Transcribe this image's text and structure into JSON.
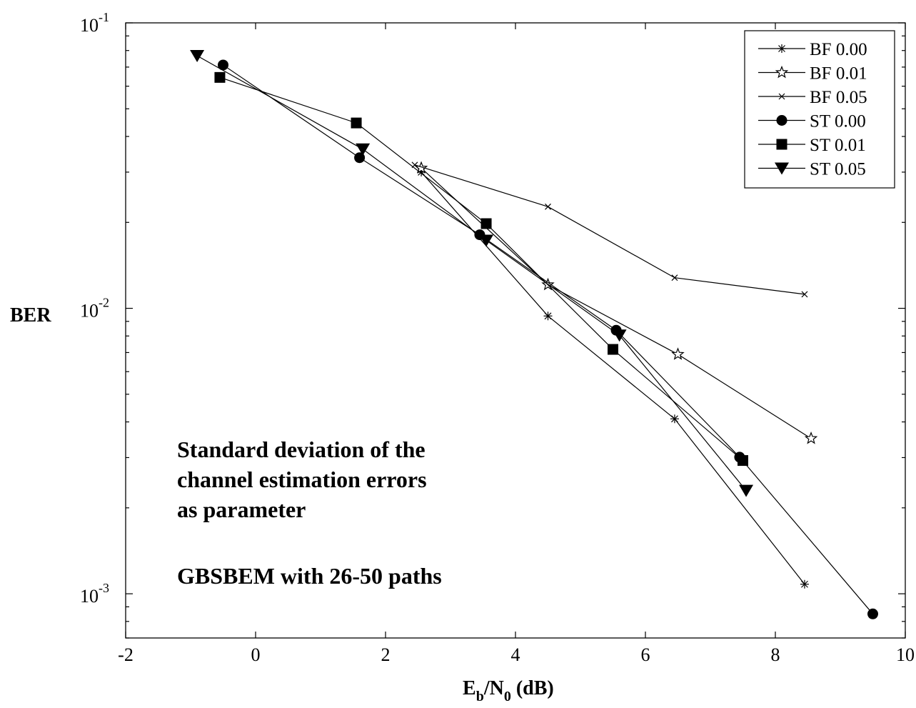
{
  "chart_data": {
    "type": "line",
    "xlabel_parts": [
      "E",
      "b",
      "/N",
      "0",
      " (dB)"
    ],
    "ylabel": "BER",
    "xlim": [
      -2,
      10
    ],
    "ylim": [
      0.0007,
      0.1
    ],
    "yscale": "log",
    "x_ticks": [
      -2,
      0,
      2,
      4,
      6,
      8,
      10
    ],
    "x_tick_labels": [
      "-2",
      "0",
      "2",
      "4",
      "6",
      "8",
      "10"
    ],
    "y_ticks": [
      0.1,
      0.01,
      0.001
    ],
    "y_tick_labels": [
      {
        "base": "10",
        "exp": "-1"
      },
      {
        "base": "10",
        "exp": "-2"
      },
      {
        "base": "10",
        "exp": "-3"
      }
    ],
    "grid": false,
    "legend_position": "top-right",
    "annotations": [
      "Standard deviation of the",
      "channel estimation errors",
      "as parameter",
      "GBSBEM with 26-50 paths"
    ],
    "series": [
      {
        "name": "BF 0.00",
        "marker": "asterisk",
        "x": [
          2.55,
          4.5,
          6.45,
          8.45
        ],
        "y": [
          0.03,
          0.0094,
          0.0041,
          0.00108
        ]
      },
      {
        "name": "BF 0.01",
        "marker": "star",
        "x": [
          2.55,
          4.5,
          6.5,
          8.55
        ],
        "y": [
          0.031,
          0.0121,
          0.0069,
          0.0035
        ]
      },
      {
        "name": "BF 0.05",
        "marker": "x",
        "x": [
          2.45,
          4.5,
          6.45,
          8.45
        ],
        "y": [
          0.0318,
          0.0227,
          0.0128,
          0.0112
        ]
      },
      {
        "name": "ST 0.00",
        "marker": "circle",
        "x": [
          -0.5,
          1.6,
          3.45,
          5.55,
          7.45,
          9.5
        ],
        "y": [
          0.0712,
          0.0337,
          0.0181,
          0.00838,
          0.00301,
          0.00085
        ]
      },
      {
        "name": "ST 0.01",
        "marker": "square",
        "x": [
          -0.55,
          1.55,
          3.55,
          5.5,
          7.5
        ],
        "y": [
          0.0644,
          0.0446,
          0.0198,
          0.00718,
          0.00293
        ]
      },
      {
        "name": "ST 0.05",
        "marker": "triangle-down",
        "x": [
          -0.9,
          1.65,
          3.55,
          5.6,
          7.55
        ],
        "y": [
          0.0767,
          0.0361,
          0.0173,
          0.00805,
          0.0023
        ]
      }
    ]
  }
}
